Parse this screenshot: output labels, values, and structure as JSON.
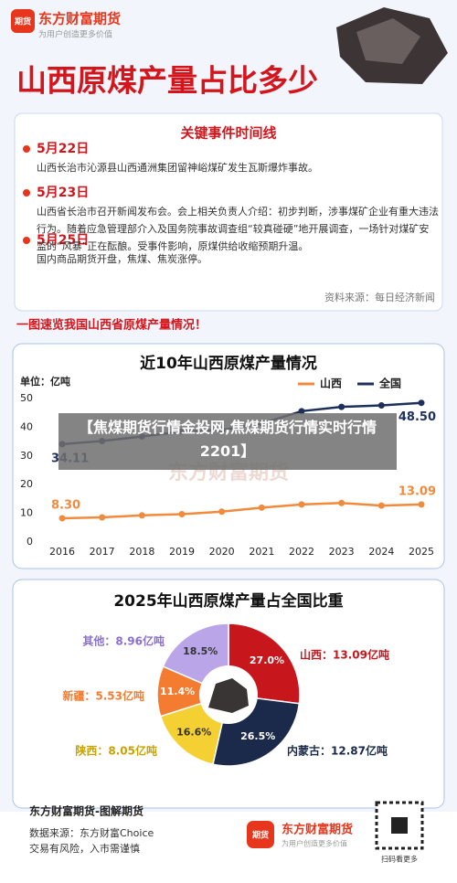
{
  "header": {
    "brand": "东方财富期货",
    "slogan": "为用户创造更多价值",
    "logo_text": "期货",
    "title": "山西原煤产量占比多少"
  },
  "timeline": {
    "title": "关键事件时间线",
    "events": [
      {
        "date": "5月22日",
        "text": "山西长治市沁源县山西通洲集团留神峪煤矿发生瓦斯爆炸事故。"
      },
      {
        "date": "5月23日",
        "text": "山西省长治市召开新闻发布会。会上相关负责人介绍：初步判断，涉事煤矿企业有重大违法行为。随着应急管理部介入及国务院事故调查组“较真碰硬”地开展调查，一场针对煤矿安监的“风暴”正在酝酿。受事件影响，原煤供给收缩预期升温。"
      },
      {
        "date": "5月25日",
        "text": "国内商品期货开盘，焦煤、焦炭涨停。"
      }
    ],
    "source": "资料来源：每日经济新闻"
  },
  "subheading": "一图速览我国山西省原煤产量情况！",
  "overlay": "【焦煤期货行情金投网,焦煤期货行情实时行情2201】",
  "watermark": "东方财富期货",
  "chart_data": [
    {
      "type": "line",
      "title": "近10年山西原煤产量情况",
      "unit": "单位：亿吨",
      "categories": [
        "2016",
        "2017",
        "2018",
        "2019",
        "2020",
        "2021",
        "2022",
        "2023",
        "2024",
        "2025"
      ],
      "series": [
        {
          "name": "山西",
          "color": "#f08a3c",
          "values": [
            8.3,
            8.6,
            9.3,
            9.7,
            10.6,
            12.0,
            13.1,
            13.6,
            12.7,
            13.09
          ],
          "value_labels": [
            "8.30",
            null,
            null,
            null,
            null,
            null,
            null,
            null,
            null,
            "13.09"
          ]
        },
        {
          "name": "全国",
          "color": "#1d2f5c",
          "values": [
            34.11,
            35.2,
            36.8,
            38.5,
            39.0,
            41.3,
            45.6,
            47.1,
            47.6,
            48.5
          ],
          "value_labels": [
            "34.11",
            null,
            null,
            null,
            null,
            null,
            null,
            null,
            null,
            "48.50"
          ]
        }
      ],
      "ylim": [
        0,
        50
      ],
      "yticks": [
        0,
        10,
        20,
        30,
        40,
        50
      ],
      "legend": "top-right"
    },
    {
      "type": "pie",
      "title": "2025年山西原煤产量占全国比重",
      "categories": [
        "山西：13.09亿吨",
        "内蒙古：12.87亿吨",
        "陕西：8.05亿吨",
        "新疆：5.53亿吨",
        "其他：8.96亿吨"
      ],
      "values": [
        27.0,
        26.5,
        16.6,
        11.4,
        18.5
      ],
      "value_labels": [
        "27.0%",
        "26.5%",
        "16.6%",
        "11.4%",
        "18.5%"
      ],
      "colors": [
        "#c8161d",
        "#1b2a4a",
        "#f5d033",
        "#f47c30",
        "#b9a5e8"
      ]
    }
  ],
  "footer": {
    "title": "东方财富期货-图解期货",
    "source": "数据来源：东方财富Choice",
    "risk": "交易有风险，入市需谨慎",
    "brand": "东方财富期货",
    "slogan": "为用户创造更多价值",
    "logo_text": "期货",
    "qr_caption": "扫码看更多"
  }
}
